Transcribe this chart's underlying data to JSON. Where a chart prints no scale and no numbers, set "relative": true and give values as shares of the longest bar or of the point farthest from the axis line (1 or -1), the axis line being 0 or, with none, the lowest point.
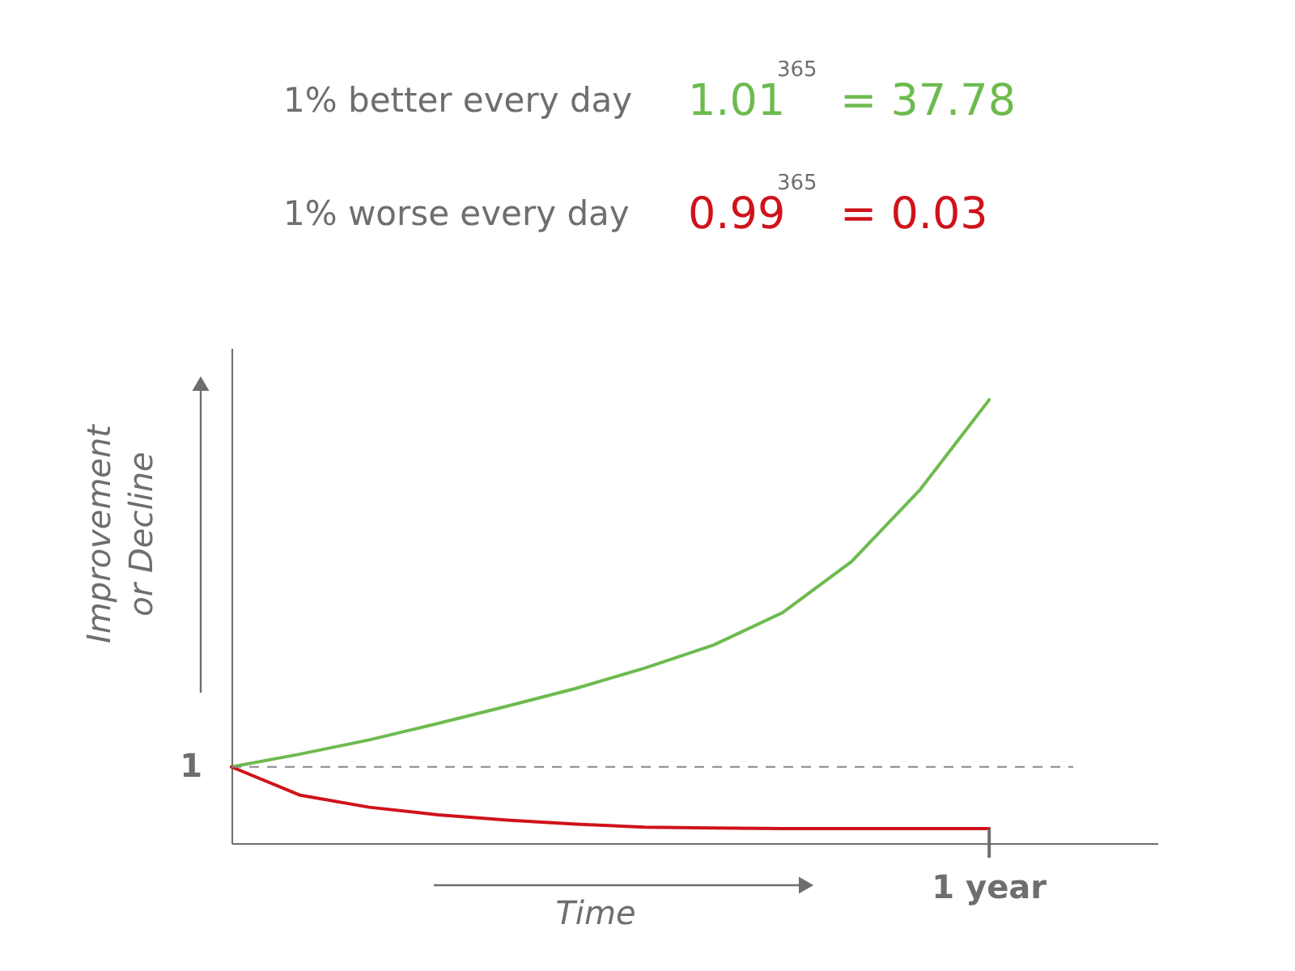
{
  "chart_data": {
    "type": "line",
    "relative": true,
    "xlabel": "Time",
    "ylabel": "Improvement or Decline",
    "annotations": [
      "1% better every day",
      "1.01$^{365}$ = 37.78",
      "1% worse every day",
      "0.99$^{365}$ = 0.03",
      "1",
      "1 year"
    ],
    "categories": [
      null,
      null,
      null,
      null,
      null,
      null,
      null,
      null,
      null,
      null,
      null,
      null
    ],
    "series": [
      {
        "color": "#6dbb4f",
        "values": [
          0.172,
          0.201,
          0.233,
          0.27,
          0.309,
          0.349,
          0.395,
          0.447,
          0.52,
          0.635,
          0.798,
          1
        ]
      },
      {
        "color": "#d0121b",
        "values": [
          0.172,
          0.108,
          0.081,
          0.064,
          0.052,
          0.043,
          0.036,
          0.034,
          0.033,
          0.033,
          0.033,
          0.033
        ]
      }
    ],
    "ref_lines": [
      {
        "axis": "y",
        "value": 0.172,
        "line_style": "dashed",
        "color": "#888888"
      }
    ],
    "marker": "none",
    "line_style": "solid",
    "grid": false
  }
}
